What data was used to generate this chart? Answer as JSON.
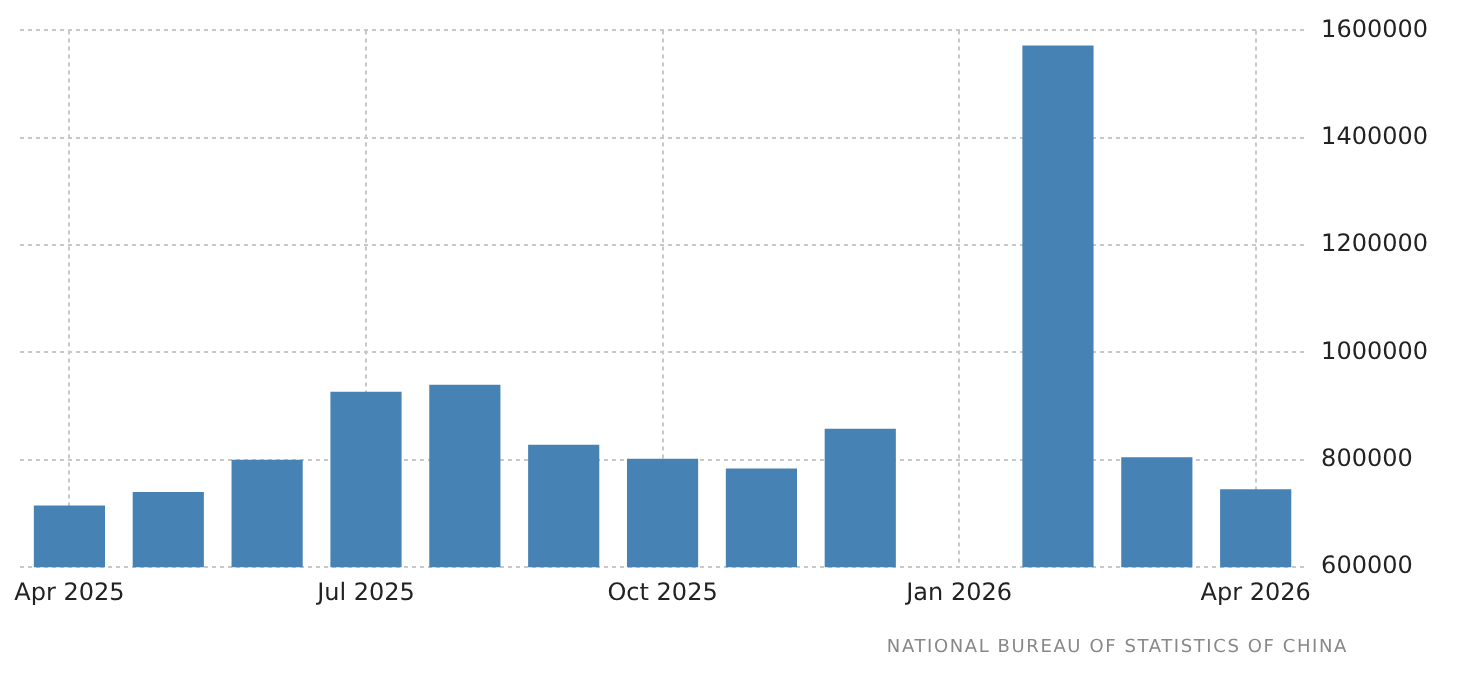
{
  "chart_data": {
    "type": "bar",
    "categories": [
      "Apr 2025",
      null,
      null,
      "Jul 2025",
      null,
      null,
      "Oct 2025",
      null,
      null,
      "Jan 2026",
      null,
      null,
      "Apr 2026"
    ],
    "values": [
      715000,
      740000,
      800000,
      927000,
      940000,
      828000,
      802000,
      784000,
      858000,
      null,
      1572000,
      805000,
      745000
    ],
    "color": "#4682b4",
    "ylim": [
      600000,
      1600000
    ],
    "yticks": [
      600000,
      800000,
      1000000,
      1200000,
      1400000,
      1600000
    ],
    "grid": true,
    "annotations": [
      "NATIONAL BUREAU OF STATISTICS OF CHINA"
    ]
  }
}
